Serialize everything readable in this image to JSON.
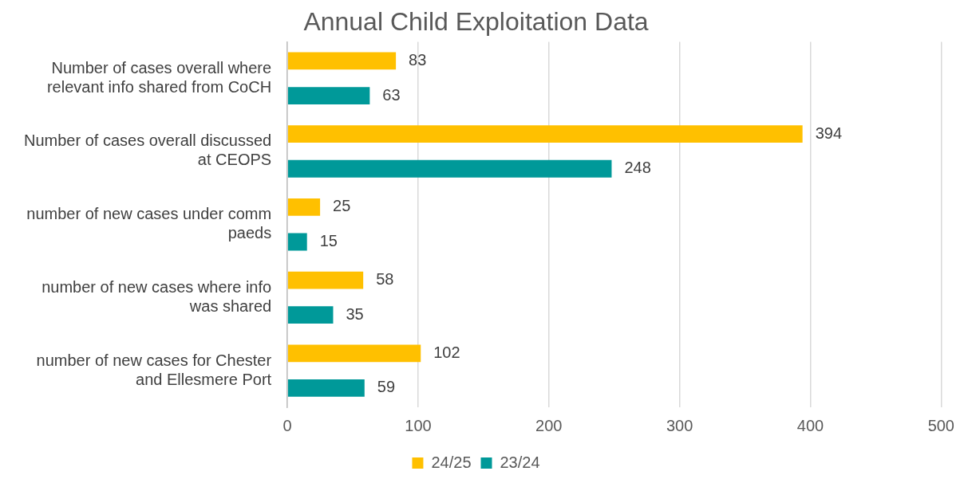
{
  "chart_data": {
    "type": "bar",
    "orientation": "horizontal",
    "title": "Annual Child Exploitation Data",
    "categories": [
      "Number of cases overall where relevant info shared from CoCH",
      "Number of cases overall discussed at CEOPS",
      "number of new cases under comm paeds",
      "number of new cases where info was shared",
      "number of new cases for Chester and Ellesmere Port"
    ],
    "series": [
      {
        "name": "24/25",
        "color": "#ffc000",
        "values": [
          83,
          394,
          25,
          58,
          102
        ]
      },
      {
        "name": "23/24",
        "color": "#009999",
        "values": [
          63,
          248,
          15,
          35,
          59
        ]
      }
    ],
    "xlim": [
      0,
      500
    ],
    "xticks": [
      0,
      100,
      200,
      300,
      400,
      500
    ],
    "grid": "x",
    "legend": "bottom",
    "data_labels": true
  }
}
